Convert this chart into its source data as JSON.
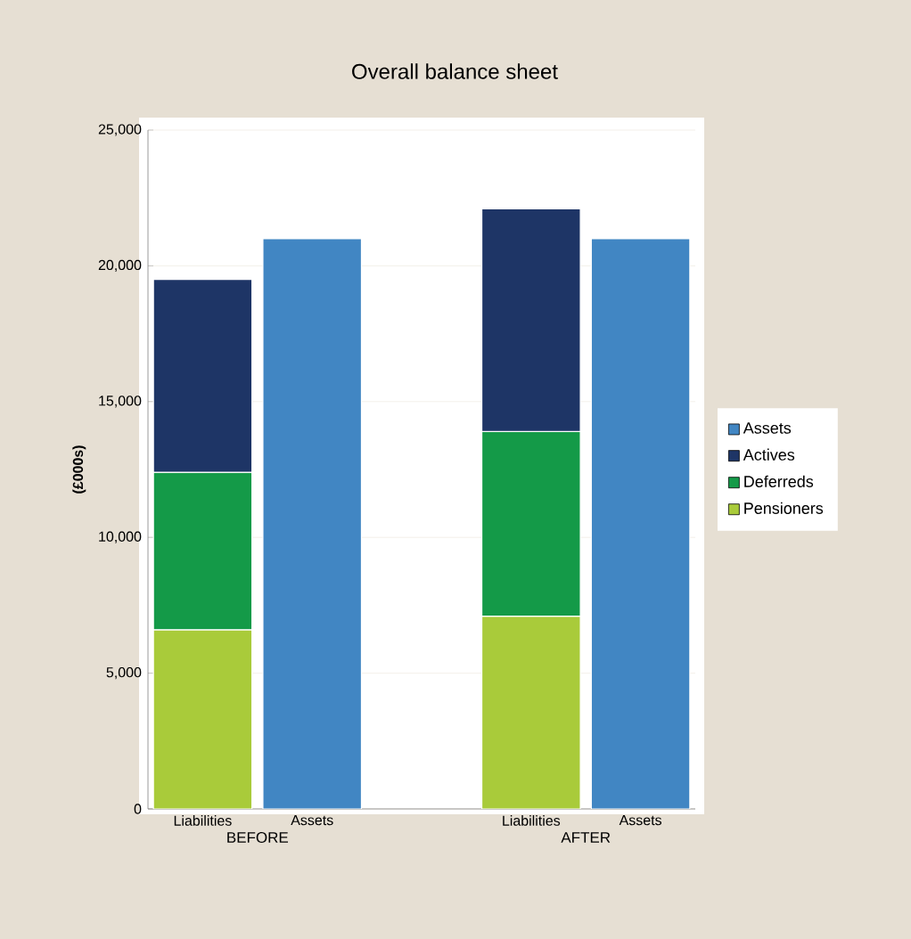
{
  "chart_data": {
    "type": "bar",
    "title": "Overall balance sheet",
    "ylabel": "(£000s)",
    "categories": [
      "Liabilities",
      "Assets",
      null,
      "Liabilities",
      "Assets"
    ],
    "stacked": true,
    "series": [
      {
        "name": "Pensioners",
        "color": "#a9cb3a",
        "values": [
          6600,
          null,
          null,
          7100,
          null
        ]
      },
      {
        "name": "Deferreds",
        "color": "#149a48",
        "values": [
          5800,
          null,
          null,
          6800,
          null
        ]
      },
      {
        "name": "Actives",
        "color": "#1e3566",
        "values": [
          7100,
          null,
          null,
          8200,
          null
        ]
      },
      {
        "name": "Assets",
        "color": "#4186c3",
        "values": [
          null,
          21000,
          null,
          null,
          21000
        ]
      }
    ],
    "ylim": [
      0,
      25000
    ],
    "yticks": [
      0,
      {
        "value": 5000,
        "label": "5,000"
      },
      {
        "value": 10000,
        "label": "10,000"
      },
      {
        "value": 15000,
        "label": "15,000"
      },
      {
        "value": 20000,
        "label": "20,000"
      },
      {
        "value": 25000,
        "label": "25,000"
      }
    ],
    "grid": "y",
    "legend": "right",
    "annotations": [
      "BEFORE",
      "AFTER"
    ]
  }
}
